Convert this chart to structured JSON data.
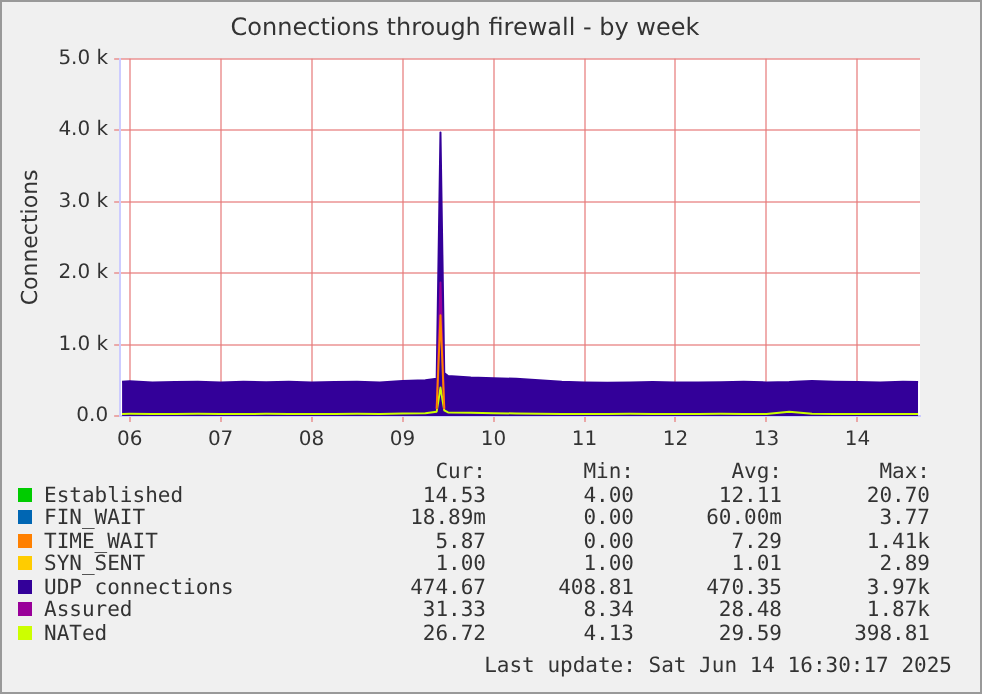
{
  "chart_data": {
    "type": "line",
    "title": "Connections through firewall - by week",
    "ylabel": "Connections",
    "x": [
      "2025-06-05T22:00",
      "2025-06-06T00:00",
      "2025-06-06T06:00",
      "2025-06-06T12:00",
      "2025-06-06T18:00",
      "2025-06-07T00:00",
      "2025-06-07T06:00",
      "2025-06-07T12:00",
      "2025-06-07T18:00",
      "2025-06-08T00:00",
      "2025-06-08T06:00",
      "2025-06-08T12:00",
      "2025-06-08T18:00",
      "2025-06-09T00:00",
      "2025-06-09T06:00",
      "2025-06-09T09:00",
      "2025-06-09T10:00",
      "2025-06-09T11:00",
      "2025-06-09T12:00",
      "2025-06-09T18:00",
      "2025-06-10T00:00",
      "2025-06-10T06:00",
      "2025-06-10T12:00",
      "2025-06-10T18:00",
      "2025-06-11T00:00",
      "2025-06-11T06:00",
      "2025-06-11T12:00",
      "2025-06-11T18:00",
      "2025-06-12T00:00",
      "2025-06-12T06:00",
      "2025-06-12T12:00",
      "2025-06-12T18:00",
      "2025-06-13T00:00",
      "2025-06-13T06:00",
      "2025-06-13T12:00",
      "2025-06-13T18:00",
      "2025-06-14T00:00",
      "2025-06-14T06:00",
      "2025-06-14T12:00",
      "2025-06-14T16:00"
    ],
    "series": [
      {
        "name": "Established",
        "color": "#00cc00",
        "values": [
          null,
          null,
          null,
          null,
          null,
          null,
          null,
          null,
          null,
          null,
          null,
          null,
          null,
          null,
          null,
          null,
          null,
          null,
          null,
          null,
          null,
          null,
          null,
          null,
          null,
          null,
          null,
          null,
          null,
          null,
          null,
          null,
          null,
          null,
          null,
          null,
          null,
          null,
          null,
          null
        ]
      },
      {
        "name": "FIN_WAIT",
        "color": "#0066b3",
        "values": [
          null,
          null,
          null,
          null,
          null,
          null,
          null,
          null,
          null,
          null,
          null,
          null,
          null,
          null,
          null,
          null,
          null,
          null,
          null,
          null,
          null,
          null,
          null,
          null,
          null,
          null,
          null,
          null,
          null,
          null,
          null,
          null,
          null,
          null,
          null,
          null,
          null,
          null,
          null,
          null
        ]
      },
      {
        "name": "TIME_WAIT",
        "color": "#ff8000",
        "values": [
          null,
          null,
          null,
          null,
          null,
          null,
          null,
          null,
          null,
          null,
          null,
          null,
          null,
          null,
          null,
          100,
          1410,
          100,
          null,
          null,
          null,
          null,
          null,
          null,
          null,
          null,
          null,
          null,
          null,
          null,
          null,
          null,
          null,
          null,
          null,
          null,
          null,
          null,
          null,
          null
        ]
      },
      {
        "name": "SYN_SENT",
        "color": "#ffcc00",
        "values": [
          null,
          null,
          null,
          null,
          null,
          null,
          null,
          null,
          null,
          null,
          null,
          null,
          null,
          null,
          null,
          null,
          null,
          null,
          null,
          null,
          null,
          null,
          null,
          null,
          null,
          null,
          null,
          null,
          null,
          null,
          null,
          null,
          null,
          null,
          null,
          null,
          null,
          null,
          null,
          null
        ]
      },
      {
        "name": "UDP connections",
        "type": "area",
        "color": "#330099",
        "values": [
          480,
          485,
          470,
          475,
          480,
          470,
          478,
          472,
          480,
          470,
          475,
          480,
          468,
          490,
          500,
          520,
          3970,
          600,
          560,
          540,
          530,
          520,
          500,
          480,
          470,
          465,
          470,
          475,
          470,
          468,
          472,
          478,
          470,
          475,
          490,
          480,
          475,
          470,
          478,
          475
        ]
      },
      {
        "name": "Assured",
        "color": "#990099",
        "values": [
          null,
          null,
          null,
          null,
          null,
          null,
          null,
          null,
          null,
          null,
          null,
          null,
          null,
          null,
          null,
          100,
          1870,
          100,
          null,
          null,
          null,
          null,
          null,
          null,
          null,
          null,
          null,
          null,
          null,
          null,
          null,
          null,
          null,
          null,
          null,
          null,
          null,
          null,
          null,
          null
        ]
      },
      {
        "name": "NATed",
        "color": "#ccff00",
        "values": [
          28,
          30,
          29,
          28,
          30,
          29,
          28,
          30,
          29,
          28,
          29,
          30,
          28,
          35,
          40,
          60,
          398,
          80,
          50,
          45,
          40,
          35,
          30,
          29,
          28,
          29,
          30,
          29,
          28,
          29,
          30,
          29,
          28,
          60,
          30,
          29,
          28,
          29,
          28,
          27
        ]
      }
    ],
    "xlim": [
      "2025-06-05T21:30",
      "2025-06-14T16:30"
    ],
    "xticks": [
      {
        "value": "2025-06-06",
        "label": "06"
      },
      {
        "value": "2025-06-07",
        "label": "07"
      },
      {
        "value": "2025-06-08",
        "label": "08"
      },
      {
        "value": "2025-06-09",
        "label": "09"
      },
      {
        "value": "2025-06-10",
        "label": "10"
      },
      {
        "value": "2025-06-11",
        "label": "11"
      },
      {
        "value": "2025-06-12",
        "label": "12"
      },
      {
        "value": "2025-06-13",
        "label": "13"
      },
      {
        "value": "2025-06-14",
        "label": "14"
      }
    ],
    "ylim": [
      0,
      5000
    ],
    "yticks": [
      {
        "value": 0,
        "label": "0.0"
      },
      {
        "value": 1000,
        "label": "1.0 k"
      },
      {
        "value": 2000,
        "label": "2.0 k"
      },
      {
        "value": 3000,
        "label": "3.0 k"
      },
      {
        "value": 4000,
        "label": "4.0 k"
      },
      {
        "value": 5000,
        "label": "5.0 k"
      }
    ],
    "grid": true,
    "legend": "bottom",
    "marker": "none",
    "line_style": "solid",
    "annotations": [
      "Cur:",
      "Min:",
      "Avg:",
      "Max:",
      "14.53",
      "4.00",
      "12.11",
      "20.70",
      "18.89m",
      "0.00",
      "60.00m",
      "3.77",
      "5.87",
      "0.00",
      "7.29",
      "1.41k",
      "1.00",
      "1.00",
      "1.01",
      "2.89",
      "474.67",
      "408.81",
      "470.35",
      "3.97k",
      "31.33",
      "8.34",
      "28.48",
      "1.87k",
      "26.72",
      "4.13",
      "29.59",
      "398.81",
      "Last update: Sat Jun 14 16:30:17 2025"
    ]
  }
}
